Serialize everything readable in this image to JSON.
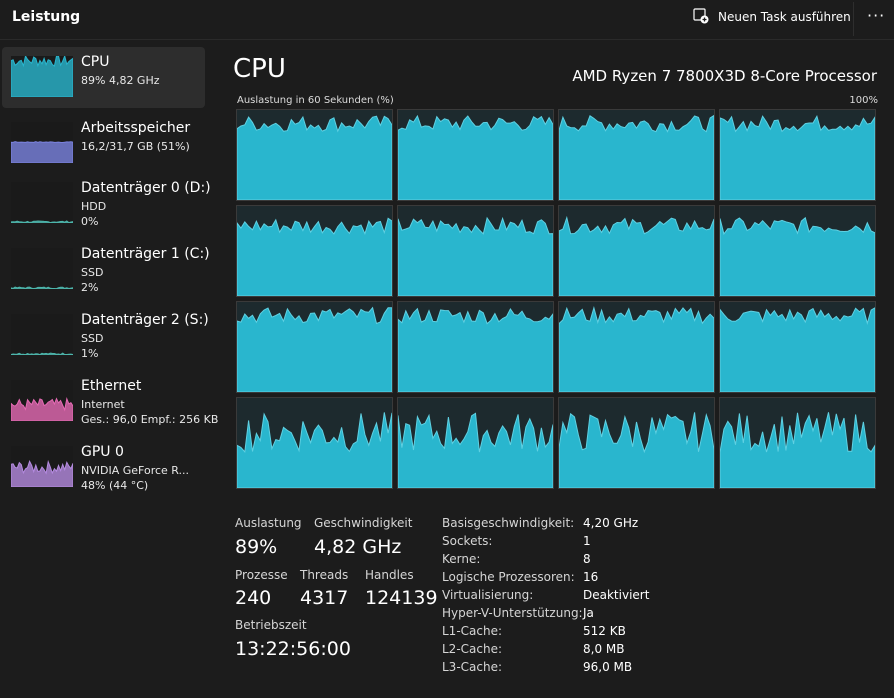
{
  "header": {
    "title": "Leistung",
    "new_task_label": "Neuen Task ausführen",
    "more_label": "···"
  },
  "sidebar": {
    "items": [
      {
        "title": "CPU",
        "lines": [
          "89% 4,82 GHz"
        ],
        "color": "#29b6ce",
        "active": true,
        "level": 0.89
      },
      {
        "title": "Arbeitsspeicher",
        "lines": [
          "16,2/31,7 GB (51%)"
        ],
        "color": "#7b83e0",
        "active": false,
        "level": 0.51
      },
      {
        "title": "Datenträger 0 (D:)",
        "lines": [
          "HDD",
          "0%"
        ],
        "color": "#4db6ac",
        "active": false,
        "level": 0.0
      },
      {
        "title": "Datenträger 1 (C:)",
        "lines": [
          "SSD",
          "2%"
        ],
        "color": "#4db6ac",
        "active": false,
        "level": 0.02
      },
      {
        "title": "Datenträger 2 (S:)",
        "lines": [
          "SSD",
          "1%"
        ],
        "color": "#4db6ac",
        "active": false,
        "level": 0.01
      },
      {
        "title": "Ethernet",
        "lines": [
          "Internet",
          "Ges.: 96,0 Empf.: 256 KB"
        ],
        "color": "#e56ab4",
        "active": false,
        "level": 0.4
      },
      {
        "title": "GPU 0",
        "lines": [
          "NVIDIA GeForce R...",
          "48% (44 °C)"
        ],
        "color": "#b58be0",
        "active": false,
        "level": 0.48
      }
    ]
  },
  "main": {
    "title": "CPU",
    "model": "AMD Ryzen 7 7800X3D 8-Core Processor",
    "graph_caption": "Auslastung in 60 Sekunden (%)",
    "graph_max": "100%",
    "graph_color": "#29b6ce",
    "logical_processor_count": 16
  },
  "stats": {
    "utilization_label": "Auslastung",
    "utilization_value": "89%",
    "speed_label": "Geschwindigkeit",
    "speed_value": "4,82 GHz",
    "processes_label": "Prozesse",
    "processes_value": "240",
    "threads_label": "Threads",
    "threads_value": "4317",
    "handles_label": "Handles",
    "handles_value": "124139",
    "uptime_label": "Betriebszeit",
    "uptime_value": "13:22:56:00"
  },
  "info": [
    {
      "label": "Basisgeschwindigkeit:",
      "value": "4,20 GHz"
    },
    {
      "label": "Sockets:",
      "value": "1"
    },
    {
      "label": "Kerne:",
      "value": "8"
    },
    {
      "label": "Logische Prozessoren:",
      "value": "16"
    },
    {
      "label": "Virtualisierung:",
      "value": "Deaktiviert"
    },
    {
      "label": "Hyper-V-Unterstützung:",
      "value": "Ja"
    },
    {
      "label": "L1-Cache:",
      "value": "512 KB"
    },
    {
      "label": "L2-Cache:",
      "value": "8,0 MB"
    },
    {
      "label": "L3-Cache:",
      "value": "96,0 MB"
    }
  ]
}
